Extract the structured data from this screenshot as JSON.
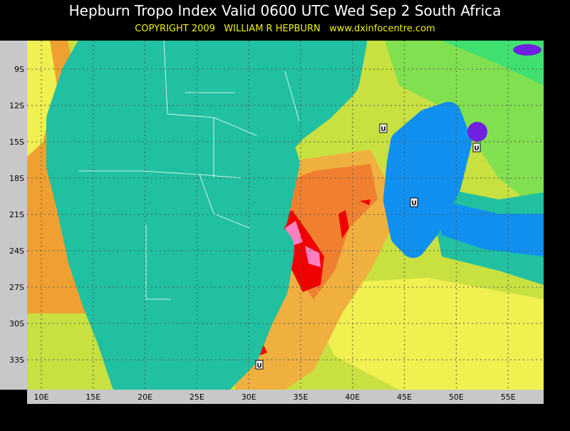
{
  "header": {
    "title": "Hepburn Tropo Index Valid 0600 UTC Wed Sep 2 South Africa",
    "subtitle": "COPYRIGHT 2009   WILLIAM R HEPBURN   www.dxinfocentre.com"
  },
  "map": {
    "lat_labels": [
      "9S",
      "12S",
      "15S",
      "18S",
      "21S",
      "24S",
      "27S",
      "30S",
      "33S"
    ],
    "lon_labels": [
      "10E",
      "15E",
      "20E",
      "25E",
      "30E",
      "35E",
      "40E",
      "45E",
      "50E",
      "55E"
    ],
    "markers": [
      "U",
      "U",
      "U",
      "U"
    ]
  }
}
